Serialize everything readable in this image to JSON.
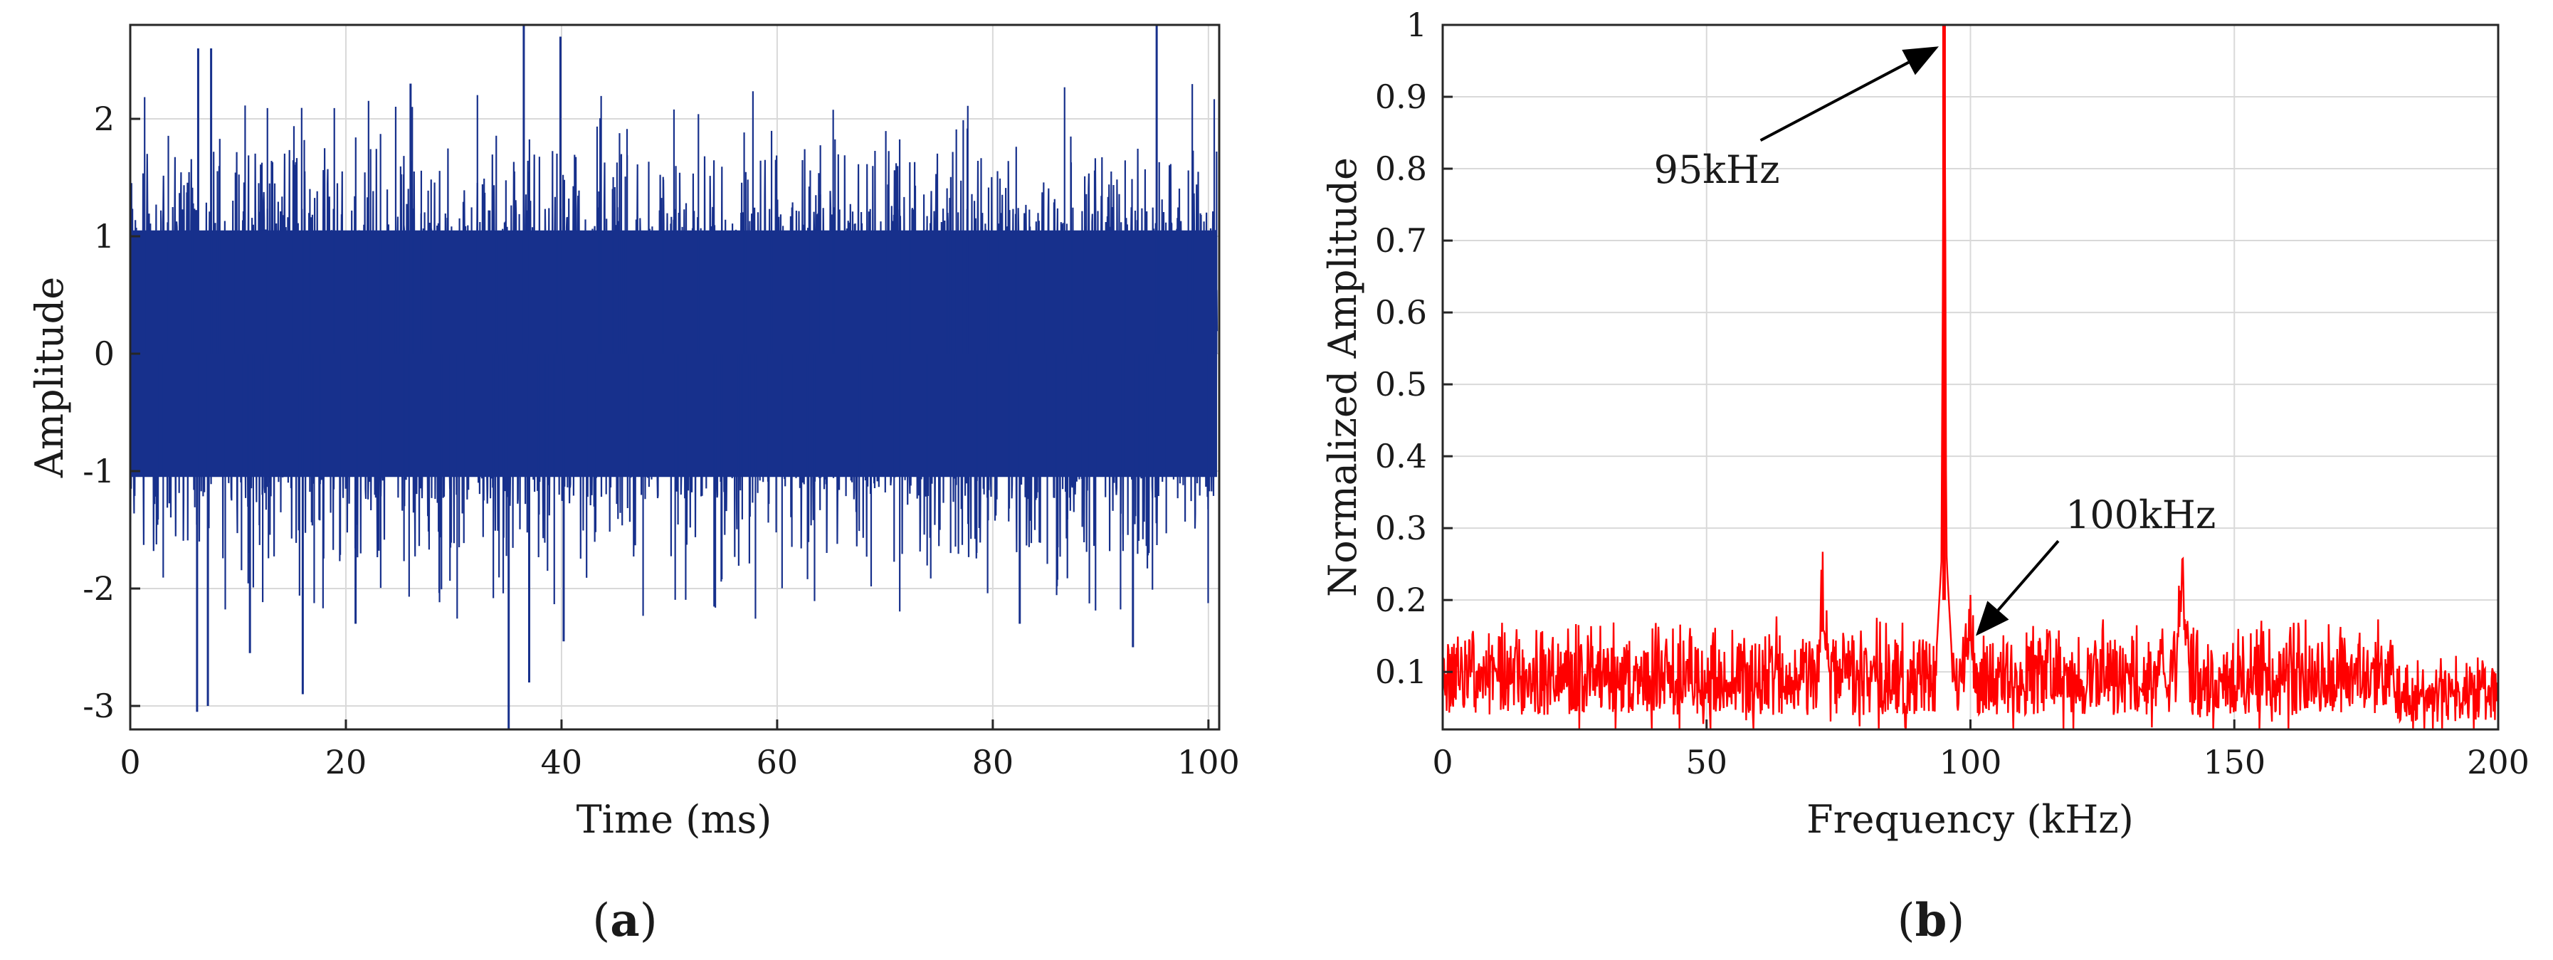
{
  "colors": {
    "time_signal": "#17308c",
    "spectrum": "#ff0000",
    "grid": "#d9d9d9",
    "axes": "#262626",
    "arrow": "#000000"
  },
  "chart_data": [
    {
      "id": "a",
      "type": "line",
      "caption": {
        "open": "(",
        "letter": "a",
        "close": ")"
      },
      "xlabel": "Time (ms)",
      "ylabel": "Amplitude",
      "xlim": [
        0,
        101
      ],
      "ylim": [
        -3.2,
        2.8
      ],
      "xticks": [
        0,
        20,
        40,
        60,
        80,
        100
      ],
      "yticks": [
        2,
        1,
        0,
        -1,
        -2,
        -3
      ],
      "grid": true,
      "legend": "none",
      "series": [
        {
          "description_note": "dense noise-like signal; envelope approx ±1.2 with sparse spikes",
          "envelope": [
            -1.25,
            1.25
          ],
          "spikes": [
            {
              "x": 6.2,
              "y": -3.05
            },
            {
              "x": 6.3,
              "y": 2.6
            },
            {
              "x": 7.2,
              "y": -3.0
            },
            {
              "x": 7.5,
              "y": 2.6
            },
            {
              "x": 11.1,
              "y": -2.55
            },
            {
              "x": 16.0,
              "y": -2.9
            },
            {
              "x": 20.9,
              "y": -2.3
            },
            {
              "x": 35.1,
              "y": -3.2
            },
            {
              "x": 36.5,
              "y": 2.8
            },
            {
              "x": 37.0,
              "y": -2.8
            },
            {
              "x": 39.9,
              "y": 2.7
            },
            {
              "x": 40.2,
              "y": -2.45
            },
            {
              "x": 95.2,
              "y": 2.8
            },
            {
              "x": 93.0,
              "y": -2.5
            },
            {
              "x": 82.5,
              "y": -2.3
            },
            {
              "x": 26.0,
              "y": 2.3
            }
          ]
        }
      ]
    },
    {
      "id": "b",
      "type": "line",
      "caption": {
        "open": "(",
        "letter": "b",
        "close": ")"
      },
      "xlabel": "Frequency (kHz)",
      "ylabel": "Normalized Amplitude",
      "xlim": [
        0,
        200
      ],
      "ylim": [
        0.02,
        1.0
      ],
      "xticks": [
        0,
        50,
        100,
        150,
        200
      ],
      "yticks": [
        1,
        0.9,
        0.8,
        0.7,
        0.6,
        0.5,
        0.4,
        0.3,
        0.2,
        0.1
      ],
      "ytick_labels": [
        "1",
        "0.9",
        "0.8",
        "0.7",
        "0.6",
        "0.5",
        "0.4",
        "0.3",
        "0.2",
        "0.1"
      ],
      "grid": true,
      "legend": "none",
      "series": [
        {
          "noise_floor": [
            0.04,
            0.18
          ],
          "peaks": [
            {
              "x": 95,
              "y": 1.0
            },
            {
              "x": 100,
              "y": 0.19
            },
            {
              "x": 140,
              "y": 0.24
            },
            {
              "x": 72,
              "y": 0.22
            }
          ]
        }
      ],
      "annotations": [
        {
          "text": "95kHz",
          "text_at": [
            40,
            0.78
          ],
          "arrow_to": [
            94,
            0.97
          ]
        },
        {
          "text": "100kHz",
          "text_at": [
            118,
            0.3
          ],
          "arrow_to": [
            101,
            0.15
          ]
        }
      ]
    }
  ]
}
